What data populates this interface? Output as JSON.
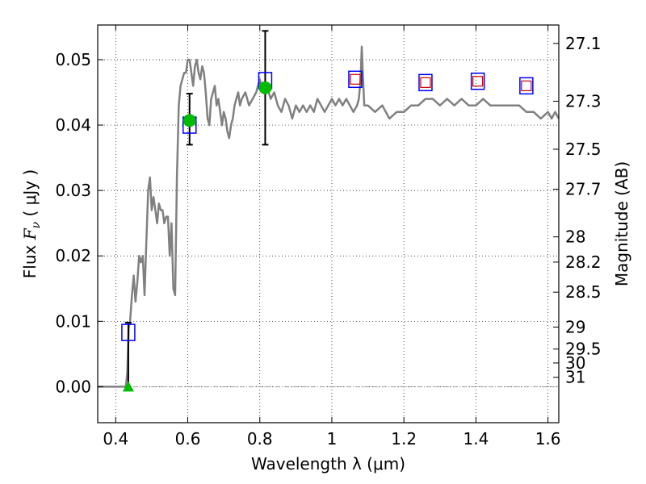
{
  "chart_data": {
    "type": "line",
    "xlabel": "Wavelength  λ (μm)",
    "ylabel_prefix": "Flux  ",
    "ylabel_math": "F",
    "ylabel_sub": "ν",
    "ylabel_suffix": "  ( μJy )",
    "y2label": "Magnitude (AB)",
    "xlim": [
      0.35,
      1.63
    ],
    "ylim": [
      -0.0055,
      0.0553
    ],
    "grid": true,
    "x_ticks": [
      0.4,
      0.6,
      0.8,
      1.0,
      1.2,
      1.4,
      1.6
    ],
    "x_tick_labels": [
      "0.4",
      "0.6",
      "0.8",
      "1",
      "1.2",
      "1.4",
      "1.6"
    ],
    "y_ticks": [
      0.0,
      0.01,
      0.02,
      0.03,
      0.04,
      0.05
    ],
    "y_tick_labels": [
      "0.00",
      "0.01",
      "0.02",
      "0.03",
      "0.04",
      "0.05"
    ],
    "mag_ticks": [
      27.1,
      27.3,
      27.5,
      27.7,
      28,
      28.2,
      28.5,
      29,
      29.5,
      30,
      31
    ],
    "mag_tick_labels": [
      "27.1",
      "27.3",
      "27.5",
      "27.7",
      "28",
      "28.2",
      "28.5",
      "29",
      "29.5",
      "30",
      "31"
    ],
    "colors": {
      "spectrum": "#808080",
      "model_box": "#0000ff",
      "model_inner_box": "#cc0000",
      "observed": "#00bb00",
      "errorbar": "#000000",
      "zero_line": "#808080"
    },
    "spectrum": {
      "x": [
        0.35,
        0.42,
        0.428,
        0.432,
        0.436,
        0.44,
        0.445,
        0.45,
        0.455,
        0.46,
        0.465,
        0.47,
        0.475,
        0.48,
        0.485,
        0.49,
        0.495,
        0.5,
        0.505,
        0.51,
        0.515,
        0.52,
        0.525,
        0.53,
        0.535,
        0.54,
        0.545,
        0.55,
        0.555,
        0.56,
        0.565,
        0.57,
        0.575,
        0.58,
        0.585,
        0.59,
        0.595,
        0.6,
        0.605,
        0.61,
        0.615,
        0.62,
        0.625,
        0.63,
        0.635,
        0.64,
        0.645,
        0.65,
        0.655,
        0.66,
        0.665,
        0.67,
        0.675,
        0.68,
        0.685,
        0.69,
        0.695,
        0.7,
        0.705,
        0.71,
        0.715,
        0.72,
        0.725,
        0.73,
        0.735,
        0.74,
        0.745,
        0.75,
        0.76,
        0.77,
        0.78,
        0.79,
        0.8,
        0.81,
        0.82,
        0.83,
        0.84,
        0.85,
        0.86,
        0.87,
        0.88,
        0.89,
        0.9,
        0.91,
        0.92,
        0.93,
        0.94,
        0.95,
        0.96,
        0.97,
        0.98,
        0.99,
        1.0,
        1.01,
        1.02,
        1.03,
        1.04,
        1.05,
        1.06,
        1.07,
        1.075,
        1.08,
        1.083,
        1.085,
        1.09,
        1.1,
        1.12,
        1.14,
        1.16,
        1.18,
        1.2,
        1.22,
        1.24,
        1.26,
        1.28,
        1.3,
        1.32,
        1.34,
        1.36,
        1.38,
        1.4,
        1.42,
        1.44,
        1.46,
        1.48,
        1.5,
        1.52,
        1.54,
        1.56,
        1.58,
        1.6,
        1.61,
        1.62,
        1.63
      ],
      "y": [
        0.0,
        0.0,
        0.0,
        0.002,
        0.009,
        0.01,
        0.014,
        0.017,
        0.013,
        0.016,
        0.02,
        0.019,
        0.02,
        0.014,
        0.022,
        0.03,
        0.032,
        0.027,
        0.029,
        0.027,
        0.025,
        0.028,
        0.027,
        0.027,
        0.025,
        0.026,
        0.026,
        0.02,
        0.025,
        0.015,
        0.014,
        0.032,
        0.043,
        0.046,
        0.047,
        0.048,
        0.048,
        0.05,
        0.05,
        0.048,
        0.046,
        0.049,
        0.05,
        0.048,
        0.047,
        0.049,
        0.048,
        0.045,
        0.041,
        0.04,
        0.044,
        0.045,
        0.046,
        0.043,
        0.044,
        0.042,
        0.04,
        0.042,
        0.041,
        0.039,
        0.038,
        0.04,
        0.041,
        0.043,
        0.044,
        0.045,
        0.043,
        0.044,
        0.045,
        0.043,
        0.044,
        0.045,
        0.047,
        0.045,
        0.046,
        0.044,
        0.045,
        0.043,
        0.042,
        0.044,
        0.043,
        0.041,
        0.043,
        0.042,
        0.043,
        0.042,
        0.043,
        0.042,
        0.044,
        0.043,
        0.042,
        0.043,
        0.044,
        0.043,
        0.044,
        0.043,
        0.044,
        0.043,
        0.042,
        0.043,
        0.044,
        0.047,
        0.052,
        0.049,
        0.043,
        0.043,
        0.042,
        0.043,
        0.041,
        0.042,
        0.042,
        0.043,
        0.043,
        0.044,
        0.044,
        0.043,
        0.044,
        0.043,
        0.044,
        0.043,
        0.043,
        0.044,
        0.043,
        0.043,
        0.043,
        0.043,
        0.043,
        0.042,
        0.042,
        0.041,
        0.042,
        0.041,
        0.042,
        0.041
      ]
    },
    "model_boxes": {
      "x": [
        0.435,
        0.605,
        0.815,
        1.065,
        1.26,
        1.405,
        1.54
      ],
      "y": [
        0.0083,
        0.04,
        0.0468,
        0.047,
        0.0465,
        0.0467,
        0.046
      ]
    },
    "model_inner_boxes": {
      "x": [
        1.065,
        1.26,
        1.405,
        1.54
      ],
      "y": [
        0.047,
        0.0465,
        0.0467,
        0.046
      ]
    },
    "observed": {
      "x": [
        0.605,
        0.815
      ],
      "y": [
        0.0407,
        0.0457
      ],
      "yerr_low": [
        0.0037,
        0.0087
      ],
      "yerr_high": [
        0.0041,
        0.0087
      ]
    },
    "upper_limit": {
      "x": [
        0.435
      ],
      "y": [
        0.0
      ],
      "yerr_high": [
        0.0098
      ]
    }
  }
}
